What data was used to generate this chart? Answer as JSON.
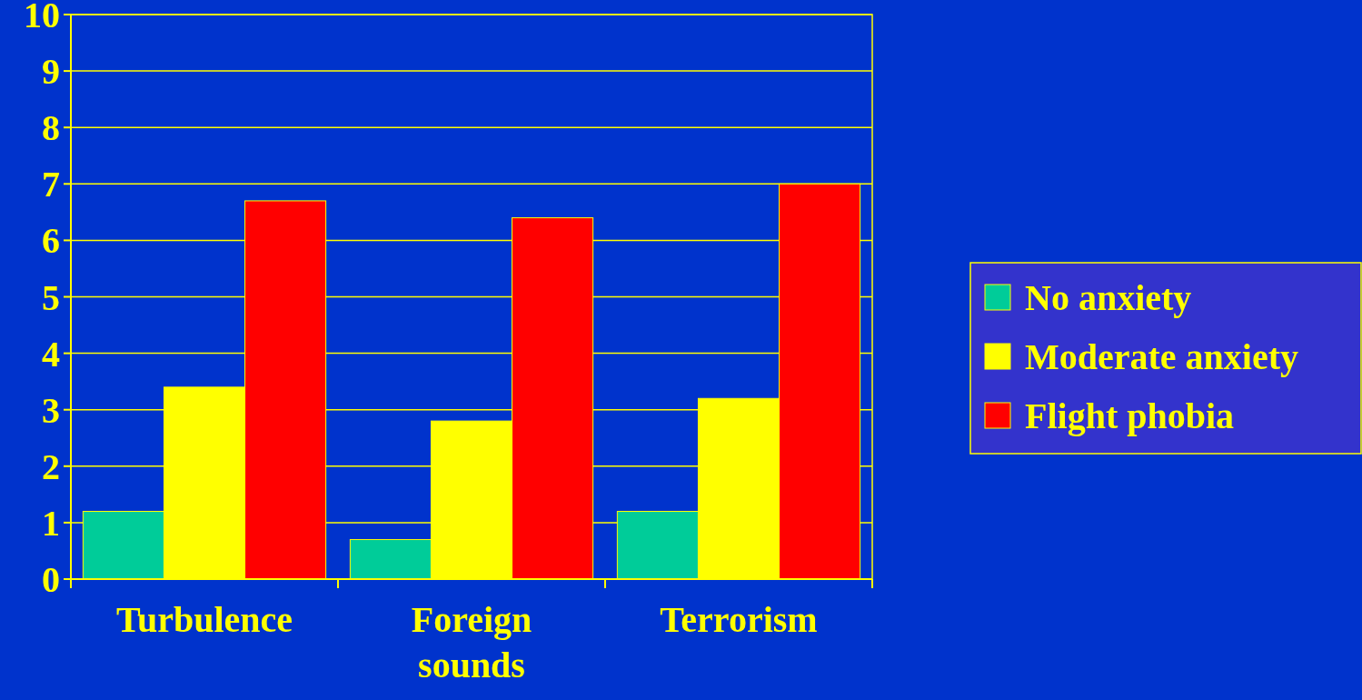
{
  "chart_data": {
    "type": "bar",
    "categories": [
      "Turbulence",
      "Foreign sounds",
      "Terrorism"
    ],
    "series": [
      {
        "name": "No anxiety",
        "color": "#00cc99",
        "values": [
          1.2,
          0.7,
          1.2
        ]
      },
      {
        "name": "Moderate anxiety",
        "color": "#ffff00",
        "values": [
          3.4,
          2.8,
          3.2
        ]
      },
      {
        "name": "Flight phobia",
        "color": "#ff0000",
        "values": [
          6.7,
          6.4,
          7.0
        ]
      }
    ],
    "ylim": [
      0,
      10
    ],
    "yticks": [
      0,
      1,
      2,
      3,
      4,
      5,
      6,
      7,
      8,
      9,
      10
    ],
    "grid": "y",
    "legend": "right"
  }
}
